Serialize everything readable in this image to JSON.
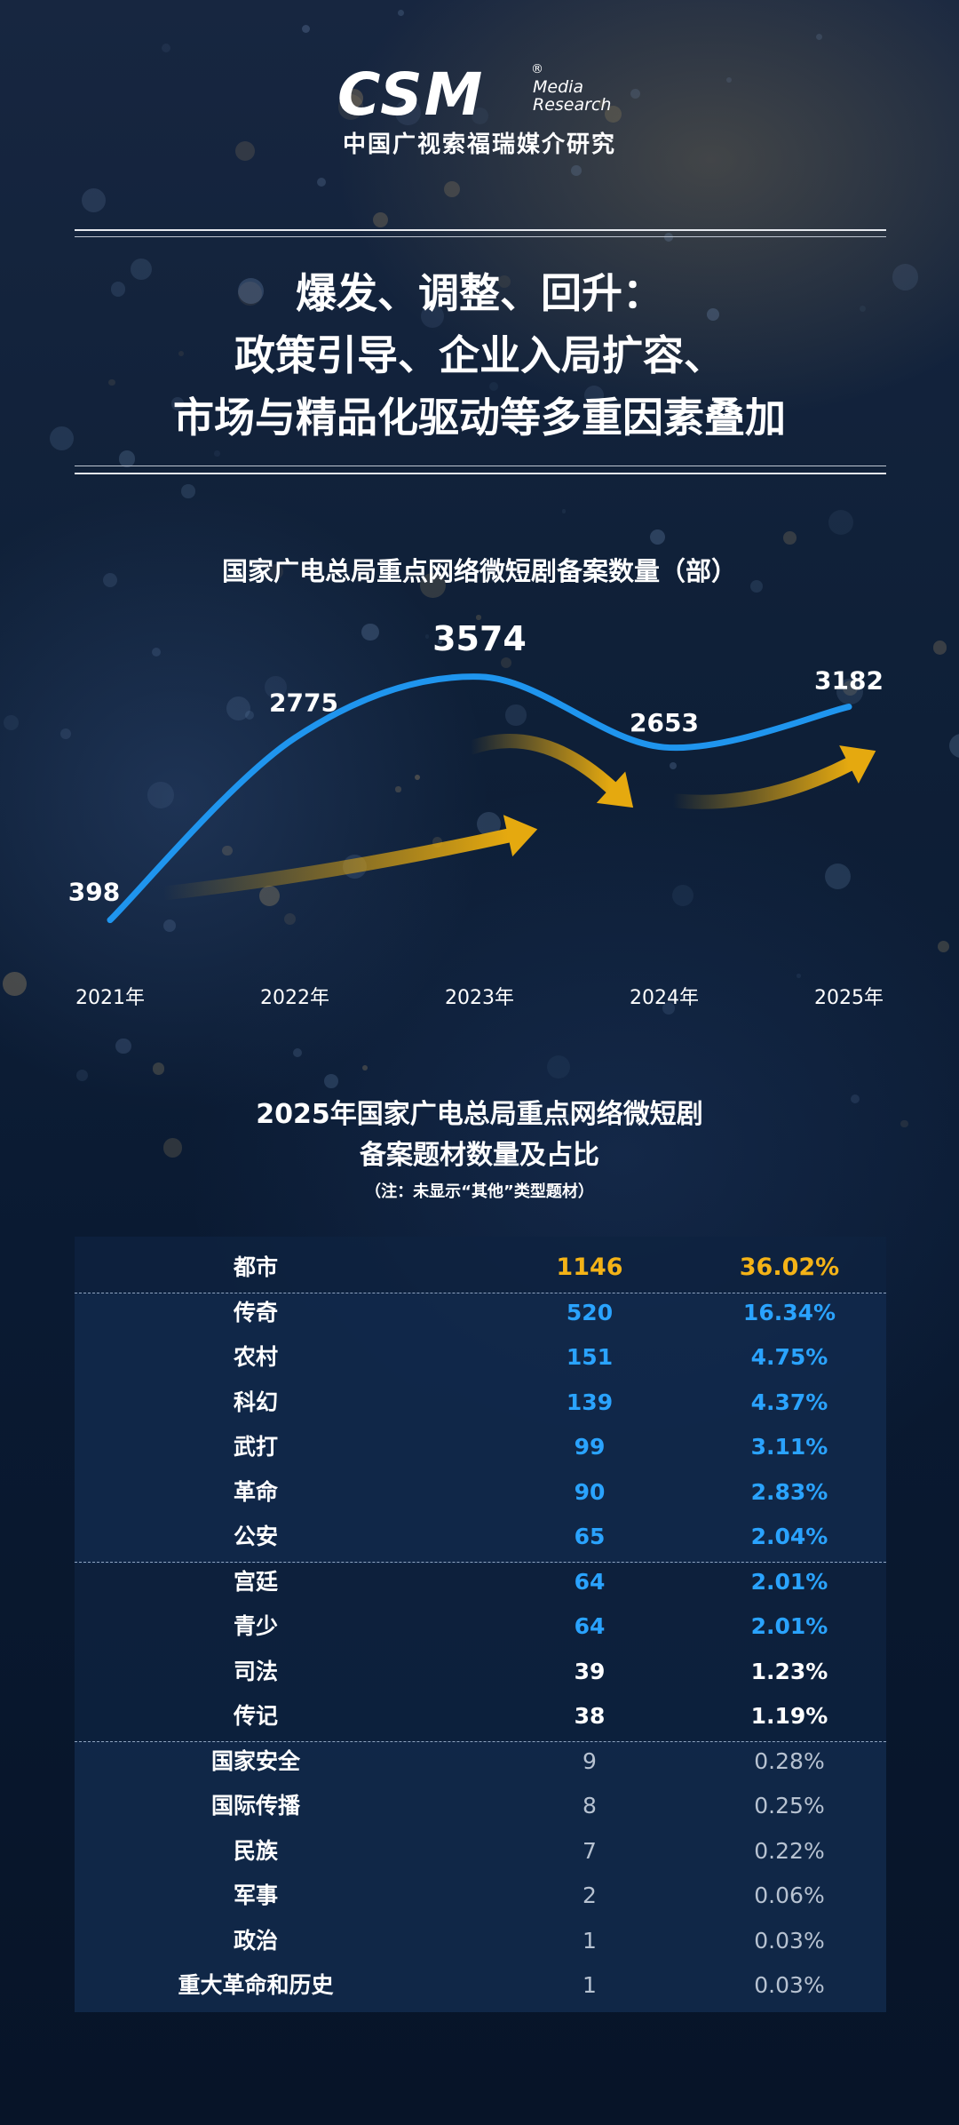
{
  "header": {
    "logo_mark": "CSM",
    "logo_sub_1": "Media",
    "logo_sub_2": "Research",
    "logo_reg": "®",
    "org_name": "中国广视索福瑞媒介研究"
  },
  "headline": {
    "line1": "爆发、调整、回升：",
    "line2": "政策引导、企业入局扩容、",
    "line3": "市场与精品化驱动等多重因素叠加"
  },
  "colors": {
    "line": "#1f95ee",
    "arrow": "#e5a90f",
    "highlight": "#f4b317",
    "blue_value": "#2aa3ff"
  },
  "chart_data": {
    "type": "line",
    "title": "国家广电总局重点网络微短剧备案数量（部）",
    "categories": [
      "2021年",
      "2022年",
      "2023年",
      "2024年",
      "2025年"
    ],
    "values": [
      398,
      2775,
      3574,
      2653,
      3182
    ],
    "value_labels": [
      "398",
      "2775",
      "3574",
      "2653",
      "3182"
    ],
    "grid": false,
    "ylim": [
      0,
      4000
    ]
  },
  "table": {
    "title_line1": "2025年国家广电总局重点网络微短剧",
    "title_line2": "备案题材数量及占比",
    "note": "（注：未显示“其他”类型题材）",
    "rows": [
      {
        "name": "都市",
        "count": "1146",
        "pct": "36.02%"
      },
      {
        "name": "传奇",
        "count": "520",
        "pct": "16.34%"
      },
      {
        "name": "农村",
        "count": "151",
        "pct": "4.75%"
      },
      {
        "name": "科幻",
        "count": "139",
        "pct": "4.37%"
      },
      {
        "name": "武打",
        "count": "99",
        "pct": "3.11%"
      },
      {
        "name": "革命",
        "count": "90",
        "pct": "2.83%"
      },
      {
        "name": "公安",
        "count": "65",
        "pct": "2.04%"
      },
      {
        "name": "宫廷",
        "count": "64",
        "pct": "2.01%"
      },
      {
        "name": "青少",
        "count": "64",
        "pct": "2.01%"
      },
      {
        "name": "司法",
        "count": "39",
        "pct": "1.23%"
      },
      {
        "name": "传记",
        "count": "38",
        "pct": "1.19%"
      },
      {
        "name": "国家安全",
        "count": "9",
        "pct": "0.28%"
      },
      {
        "name": "国际传播",
        "count": "8",
        "pct": "0.25%"
      },
      {
        "name": "民族",
        "count": "7",
        "pct": "0.22%"
      },
      {
        "name": "军事",
        "count": "2",
        "pct": "0.06%"
      },
      {
        "name": "政治",
        "count": "1",
        "pct": "0.03%"
      },
      {
        "name": "重大革命和历史",
        "count": "1",
        "pct": "0.03%"
      }
    ]
  }
}
